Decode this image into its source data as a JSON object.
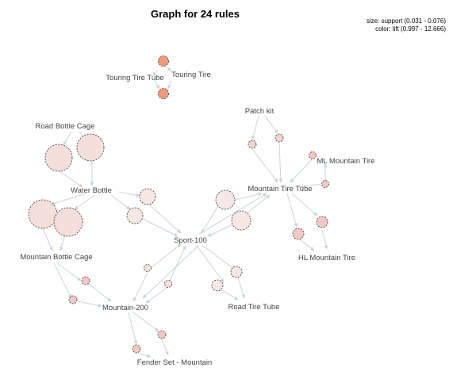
{
  "graph": {
    "title": "Graph for 24 rules",
    "legend": {
      "size": "size: support (0.031 - 0.076)",
      "color": "color: lift (0.997 - 12.666)"
    },
    "items": [
      "Touring Tire Tube",
      "Touring Tire",
      "Patch kit",
      "Road Bottle Cage",
      "ML Mountain Tire",
      "Mountain Tire Tube",
      "Water Bottle",
      "Sport-100",
      "HL Mountain Tire",
      "Mountain Bottle Cage",
      "Road Tire Tube",
      "Mountain-200",
      "Fender Set - Mountain"
    ],
    "colors": {
      "edge": "#c9d3de",
      "node_outline": "#333333",
      "lift_high": "#ef9a7c",
      "lift_mid": "#f5c6b8",
      "lift_low": "#f6e2dd"
    }
  }
}
